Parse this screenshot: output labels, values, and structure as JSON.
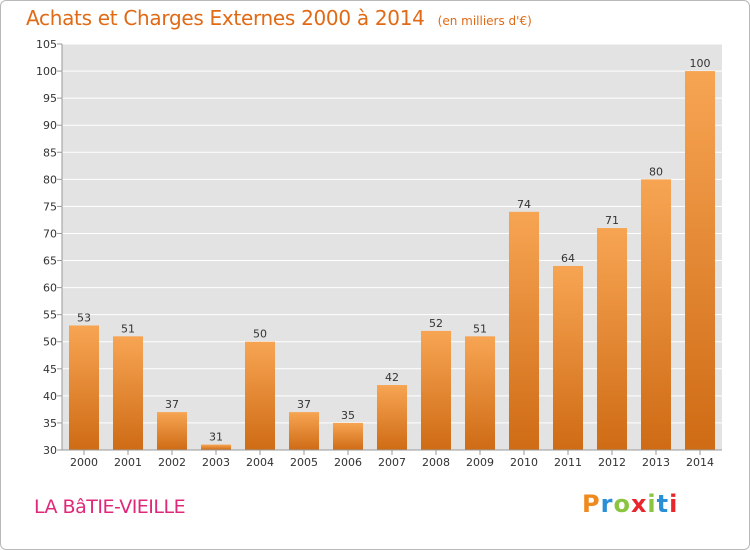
{
  "page": {
    "title": "Achats et Charges Externes 2000 à 2014",
    "subtitle": "(en milliers d'€)",
    "commune": "LA BâTIE-VIEILLE",
    "logo": "Proxiti"
  },
  "colors": {
    "title": "#e06a15",
    "commune": "#e0287a",
    "bar_light": "#f7a553",
    "bar_dark": "#cf6b15",
    "plot_bg": "#e3e3e3",
    "logo": [
      "#ef8a1f",
      "#2a8fd6",
      "#8bc53f",
      "#e8262d",
      "#8bc53f",
      "#2a8fd6",
      "#e8262d"
    ]
  },
  "chart_data": {
    "type": "bar",
    "title": "Achats et Charges Externes 2000 à 2014",
    "subtitle": "(en milliers d'€)",
    "categories": [
      "2000",
      "2001",
      "2002",
      "2003",
      "2004",
      "2005",
      "2006",
      "2007",
      "2008",
      "2009",
      "2010",
      "2011",
      "2012",
      "2013",
      "2014"
    ],
    "values": [
      53,
      51,
      37,
      31,
      50,
      37,
      35,
      42,
      52,
      51,
      74,
      64,
      71,
      80,
      100
    ],
    "ylim": [
      30,
      105
    ],
    "yticks": [
      30,
      35,
      40,
      45,
      50,
      55,
      60,
      65,
      70,
      75,
      80,
      85,
      90,
      95,
      100,
      105
    ],
    "grid": "horizontal",
    "data_labels": true
  }
}
